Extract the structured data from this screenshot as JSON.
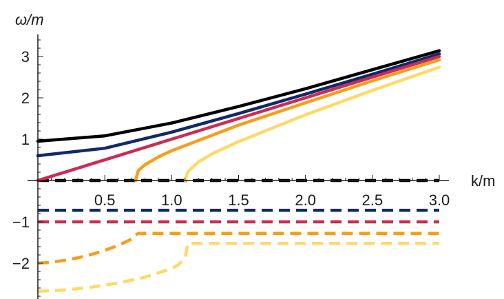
{
  "chart_data": {
    "type": "line",
    "xlabel": "k/m",
    "ylabel": "ω/m",
    "xlim": [
      0,
      3.0
    ],
    "ylim": [
      -2.9,
      3.4
    ],
    "x_ticks": [
      0.5,
      1.0,
      1.5,
      2.0,
      2.5,
      3.0
    ],
    "x_tick_labels": [
      "0.5",
      "1.0",
      "1.5",
      "2.0",
      "2.5",
      "3.0"
    ],
    "y_ticks": [
      -2,
      -1,
      1,
      2,
      3
    ],
    "y_tick_labels": [
      "−2",
      "−1",
      "1",
      "2",
      "3"
    ],
    "grid": false,
    "series": [
      {
        "color": "#000000",
        "style": "solid",
        "x": [
          0,
          0.5,
          1.0,
          1.5,
          2.0,
          2.5,
          3.0
        ],
        "y": [
          0.95,
          1.08,
          1.39,
          1.79,
          2.22,
          2.68,
          3.14
        ]
      },
      {
        "color": "#0f2a6b",
        "style": "solid",
        "x": [
          0,
          0.5,
          1.0,
          1.5,
          2.0,
          2.5,
          3.0
        ],
        "y": [
          0.6,
          0.78,
          1.17,
          1.62,
          2.09,
          2.57,
          3.06
        ]
      },
      {
        "color": "#cc2b52",
        "style": "solid",
        "x": [
          0,
          0.5,
          1.0,
          1.5,
          2.0,
          2.5,
          3.0
        ],
        "y": [
          0,
          0.5,
          1.0,
          1.5,
          2.0,
          2.5,
          3.0
        ]
      },
      {
        "color": "#f89c1c",
        "style": "solid",
        "x": [
          0.73,
          0.75,
          0.8,
          0.9,
          1.0,
          1.5,
          2.0,
          2.5,
          3.0
        ],
        "y": [
          0,
          0.24,
          0.38,
          0.57,
          0.72,
          1.34,
          1.88,
          2.41,
          2.92
        ]
      },
      {
        "color": "#ffd966",
        "style": "solid",
        "x": [
          1.1,
          1.12,
          1.2,
          1.3,
          1.5,
          2.0,
          2.5,
          3.0
        ],
        "y": [
          0,
          0.21,
          0.45,
          0.64,
          0.94,
          1.59,
          2.18,
          2.74
        ]
      },
      {
        "color": "#000000",
        "style": "dashed",
        "x": [
          0,
          3.0
        ],
        "y": [
          0,
          0
        ]
      },
      {
        "color": "#0f2a6b",
        "style": "dashed",
        "x": [
          0,
          3.0
        ],
        "y": [
          -0.72,
          -0.72
        ]
      },
      {
        "color": "#cc2b52",
        "style": "dashed",
        "x": [
          0,
          3.0
        ],
        "y": [
          -1.0,
          -1.0
        ]
      },
      {
        "color": "#f89c1c",
        "style": "dashed",
        "x": [
          0,
          0.1,
          0.2,
          0.3,
          0.4,
          0.5,
          0.6,
          0.7,
          0.73,
          0.75,
          3.0
        ],
        "y": [
          -2.0,
          -1.98,
          -1.93,
          -1.87,
          -1.79,
          -1.69,
          -1.57,
          -1.42,
          -1.32,
          -1.28,
          -1.28
        ]
      },
      {
        "color": "#ffd966",
        "style": "dashed",
        "x": [
          0,
          0.2,
          0.4,
          0.6,
          0.8,
          1.0,
          1.05,
          1.1,
          1.12,
          3.0
        ],
        "y": [
          -2.68,
          -2.65,
          -2.58,
          -2.48,
          -2.34,
          -2.13,
          -2.04,
          -1.87,
          -1.52,
          -1.52
        ]
      }
    ]
  }
}
